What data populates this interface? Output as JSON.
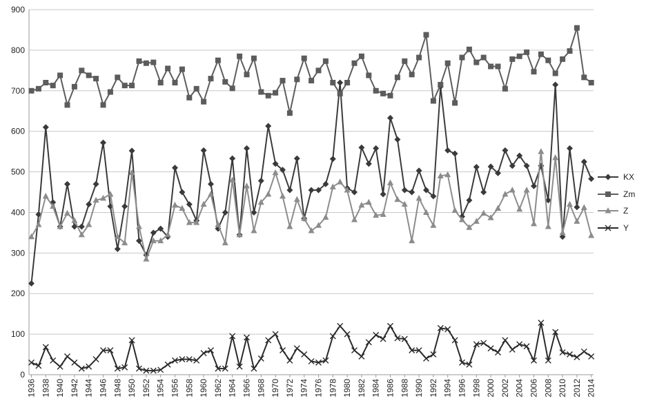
{
  "chart_data": {
    "type": "line",
    "title": "",
    "xlabel": "",
    "ylabel": "",
    "ylim": [
      0,
      900
    ],
    "yticks": [
      0,
      100,
      200,
      300,
      400,
      500,
      600,
      700,
      800,
      900
    ],
    "x_range": [
      1936,
      2014
    ],
    "xticks": [
      1936,
      1938,
      1940,
      1942,
      1944,
      1946,
      1948,
      1950,
      1952,
      1954,
      1956,
      1958,
      1960,
      1962,
      1964,
      1966,
      1968,
      1970,
      1972,
      1974,
      1976,
      1978,
      1980,
      1982,
      1984,
      1986,
      1988,
      1990,
      1992,
      1994,
      1996,
      1998,
      2000,
      2002,
      2004,
      2006,
      2008,
      2010,
      2012,
      2014
    ],
    "grid": "horizontal",
    "legend_position": "right",
    "series": [
      {
        "name": "KX",
        "color": "#3a3a3a",
        "marker": "diamond",
        "values": [
          225,
          395,
          610,
          425,
          365,
          470,
          365,
          365,
          420,
          470,
          572,
          415,
          310,
          415,
          552,
          330,
          295,
          350,
          360,
          340,
          510,
          450,
          420,
          380,
          553,
          470,
          360,
          400,
          533,
          345,
          558,
          400,
          478,
          613,
          520,
          505,
          455,
          533,
          385,
          455,
          455,
          470,
          532,
          720,
          460,
          450,
          560,
          520,
          558,
          445,
          633,
          580,
          455,
          450,
          503,
          455,
          440,
          710,
          553,
          545,
          390,
          430,
          512,
          450,
          513,
          497,
          553,
          515,
          540,
          515,
          465,
          515,
          430,
          715,
          340,
          558,
          413,
          525,
          483
        ]
      },
      {
        "name": "Zm",
        "color": "#5c5c5c",
        "marker": "square",
        "values": [
          700,
          705,
          720,
          713,
          738,
          665,
          710,
          750,
          738,
          730,
          665,
          697,
          733,
          713,
          713,
          773,
          768,
          770,
          720,
          755,
          720,
          753,
          683,
          705,
          673,
          730,
          775,
          722,
          706,
          785,
          740,
          780,
          697,
          688,
          695,
          725,
          645,
          728,
          780,
          725,
          750,
          773,
          720,
          693,
          720,
          768,
          785,
          738,
          700,
          693,
          688,
          733,
          773,
          740,
          782,
          838,
          675,
          715,
          768,
          670,
          782,
          802,
          770,
          782,
          760,
          760,
          705,
          778,
          785,
          795,
          747,
          790,
          775,
          743,
          778,
          798,
          855,
          733,
          720
        ]
      },
      {
        "name": "Z",
        "color": "#8c8c8c",
        "marker": "triangle",
        "values": [
          340,
          370,
          440,
          415,
          365,
          398,
          380,
          345,
          370,
          430,
          435,
          445,
          340,
          325,
          498,
          365,
          285,
          330,
          330,
          345,
          418,
          410,
          375,
          375,
          420,
          445,
          370,
          325,
          480,
          345,
          465,
          355,
          425,
          445,
          498,
          440,
          365,
          432,
          385,
          355,
          368,
          388,
          463,
          475,
          455,
          382,
          418,
          425,
          393,
          395,
          473,
          432,
          420,
          330,
          435,
          400,
          368,
          490,
          493,
          405,
          382,
          363,
          378,
          398,
          387,
          410,
          445,
          455,
          408,
          455,
          372,
          550,
          365,
          535,
          350,
          420,
          378,
          412,
          343
        ]
      },
      {
        "name": "Y",
        "color": "#2a2a2a",
        "marker": "x",
        "values": [
          30,
          22,
          68,
          35,
          20,
          45,
          30,
          15,
          20,
          38,
          60,
          60,
          15,
          18,
          85,
          15,
          10,
          10,
          12,
          25,
          35,
          38,
          38,
          35,
          53,
          60,
          15,
          15,
          95,
          20,
          92,
          15,
          40,
          85,
          100,
          60,
          35,
          65,
          50,
          33,
          30,
          35,
          95,
          120,
          100,
          60,
          45,
          80,
          98,
          88,
          120,
          90,
          88,
          60,
          60,
          40,
          50,
          115,
          112,
          85,
          30,
          25,
          75,
          78,
          65,
          55,
          85,
          62,
          75,
          70,
          35,
          128,
          35,
          105,
          55,
          50,
          43,
          57,
          45
        ]
      }
    ]
  }
}
